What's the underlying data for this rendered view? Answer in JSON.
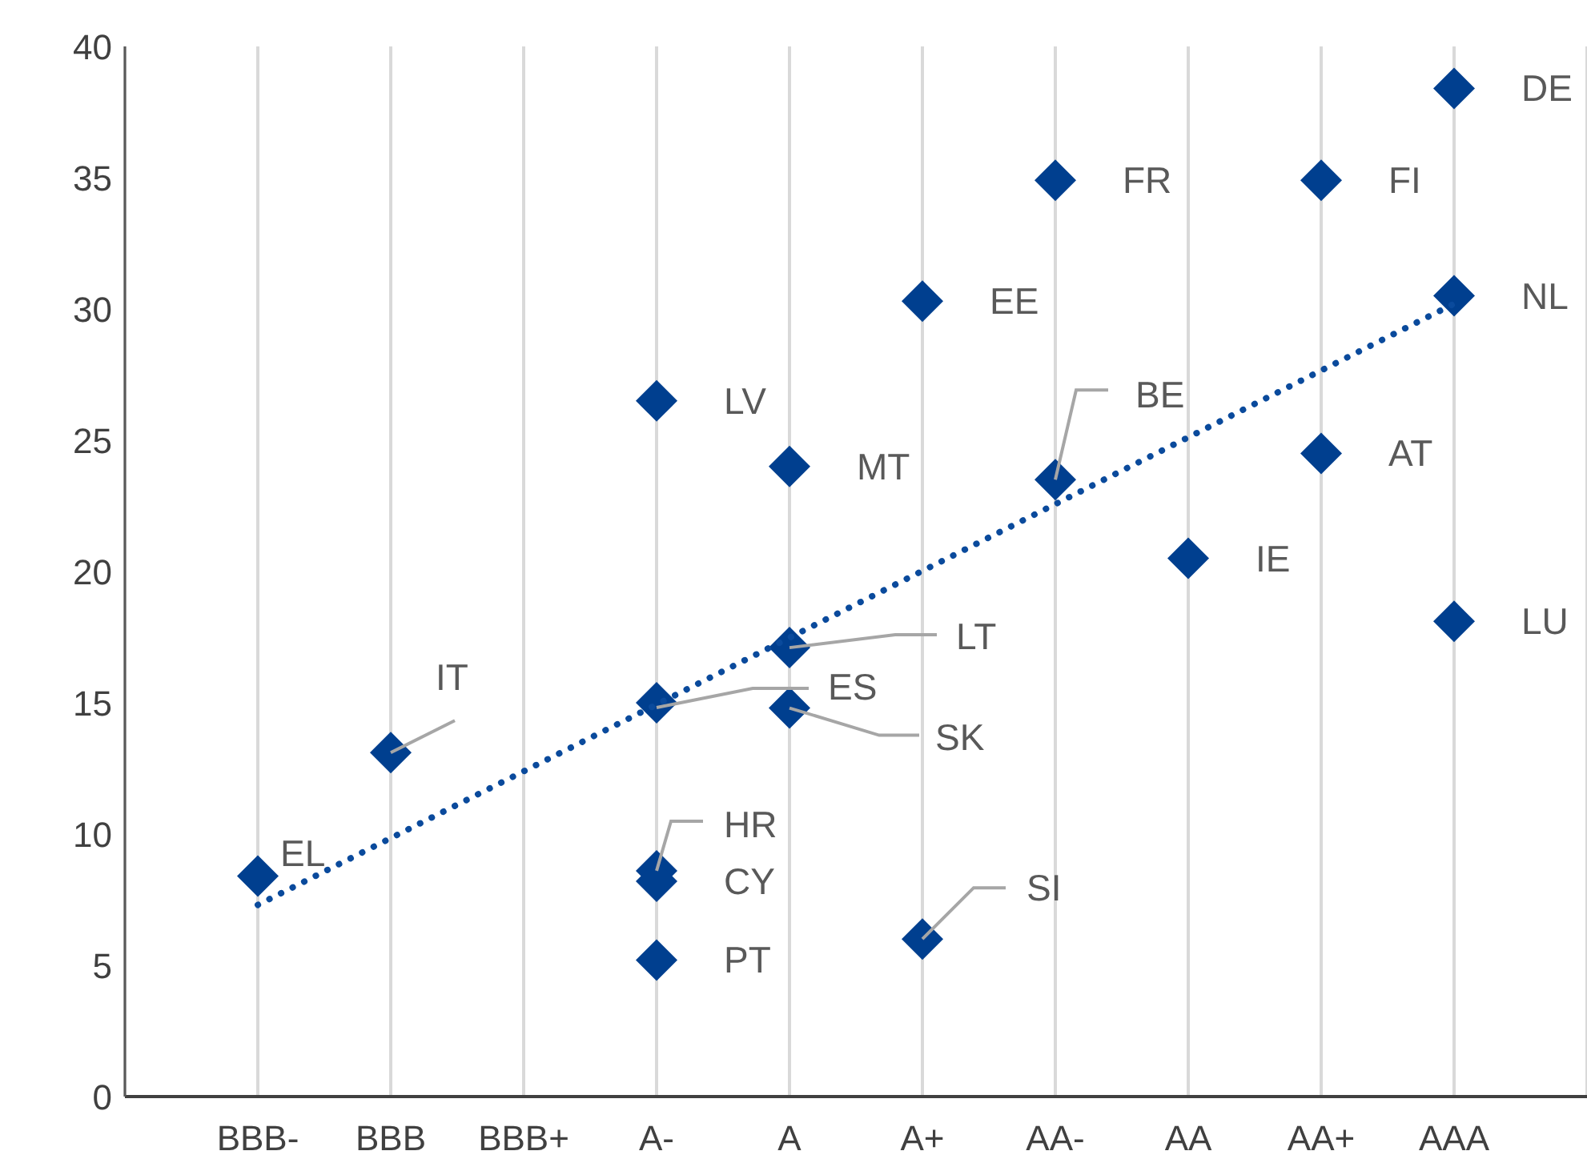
{
  "chart_data": {
    "type": "scatter",
    "categories": [
      "BBB-",
      "BBB",
      "BBB+",
      "A-",
      "A",
      "A+",
      "AA-",
      "AA",
      "AA+",
      "AAA"
    ],
    "series": [
      {
        "type": "scatter",
        "color": "#003f8f",
        "marker": "diamond",
        "x": [
          "BBB-",
          "BBB",
          "A-",
          "A-",
          "A-",
          "A-",
          "A-",
          "A",
          "A",
          "A",
          "A+",
          "A+",
          "AA-",
          "AA-",
          "AA",
          "AA+",
          "AA+",
          "AAA",
          "AAA",
          "AAA"
        ],
        "values": [
          8.4,
          13.1,
          26.5,
          15.0,
          8.6,
          8.2,
          5.2,
          24.0,
          17.1,
          14.8,
          30.3,
          6.0,
          34.9,
          23.5,
          20.5,
          34.9,
          24.5,
          38.4,
          30.5,
          18.1
        ]
      },
      {
        "type": "line",
        "color": "#0a4a9c",
        "marker": "none",
        "line_style": "dotted",
        "x": [
          "BBB-",
          "AAA"
        ],
        "values": [
          7.3,
          30.2
        ]
      }
    ],
    "ylim": [
      0,
      40
    ],
    "yticks": [
      0,
      5,
      10,
      15,
      20,
      25,
      30,
      35,
      40
    ],
    "grid": "x",
    "annotations": [
      {
        "text": "EL",
        "x": "BBB-",
        "y": 8.4
      },
      {
        "text": "IT",
        "x": "BBB",
        "y": 13.1
      },
      {
        "text": "LV",
        "x": "A-",
        "y": 26.5
      },
      {
        "text": "ES",
        "x": "A-",
        "y": 15.0
      },
      {
        "text": "HR",
        "x": "A-",
        "y": 8.6
      },
      {
        "text": "CY",
        "x": "A-",
        "y": 8.2
      },
      {
        "text": "PT",
        "x": "A-",
        "y": 5.2
      },
      {
        "text": "MT",
        "x": "A",
        "y": 24.0
      },
      {
        "text": "LT",
        "x": "A",
        "y": 17.1
      },
      {
        "text": "SK",
        "x": "A",
        "y": 14.8
      },
      {
        "text": "EE",
        "x": "A+",
        "y": 30.3
      },
      {
        "text": "SI",
        "x": "A+",
        "y": 6.0
      },
      {
        "text": "FR",
        "x": "AA-",
        "y": 34.9
      },
      {
        "text": "BE",
        "x": "AA-",
        "y": 23.5
      },
      {
        "text": "IE",
        "x": "AA",
        "y": 20.5
      },
      {
        "text": "FI",
        "x": "AA+",
        "y": 34.9
      },
      {
        "text": "AT",
        "x": "AA+",
        "y": 24.5
      },
      {
        "text": "DE",
        "x": "AAA",
        "y": 38.4
      },
      {
        "text": "NL",
        "x": "AAA",
        "y": 30.5
      },
      {
        "text": "LU",
        "x": "AAA",
        "y": 18.1
      }
    ]
  }
}
